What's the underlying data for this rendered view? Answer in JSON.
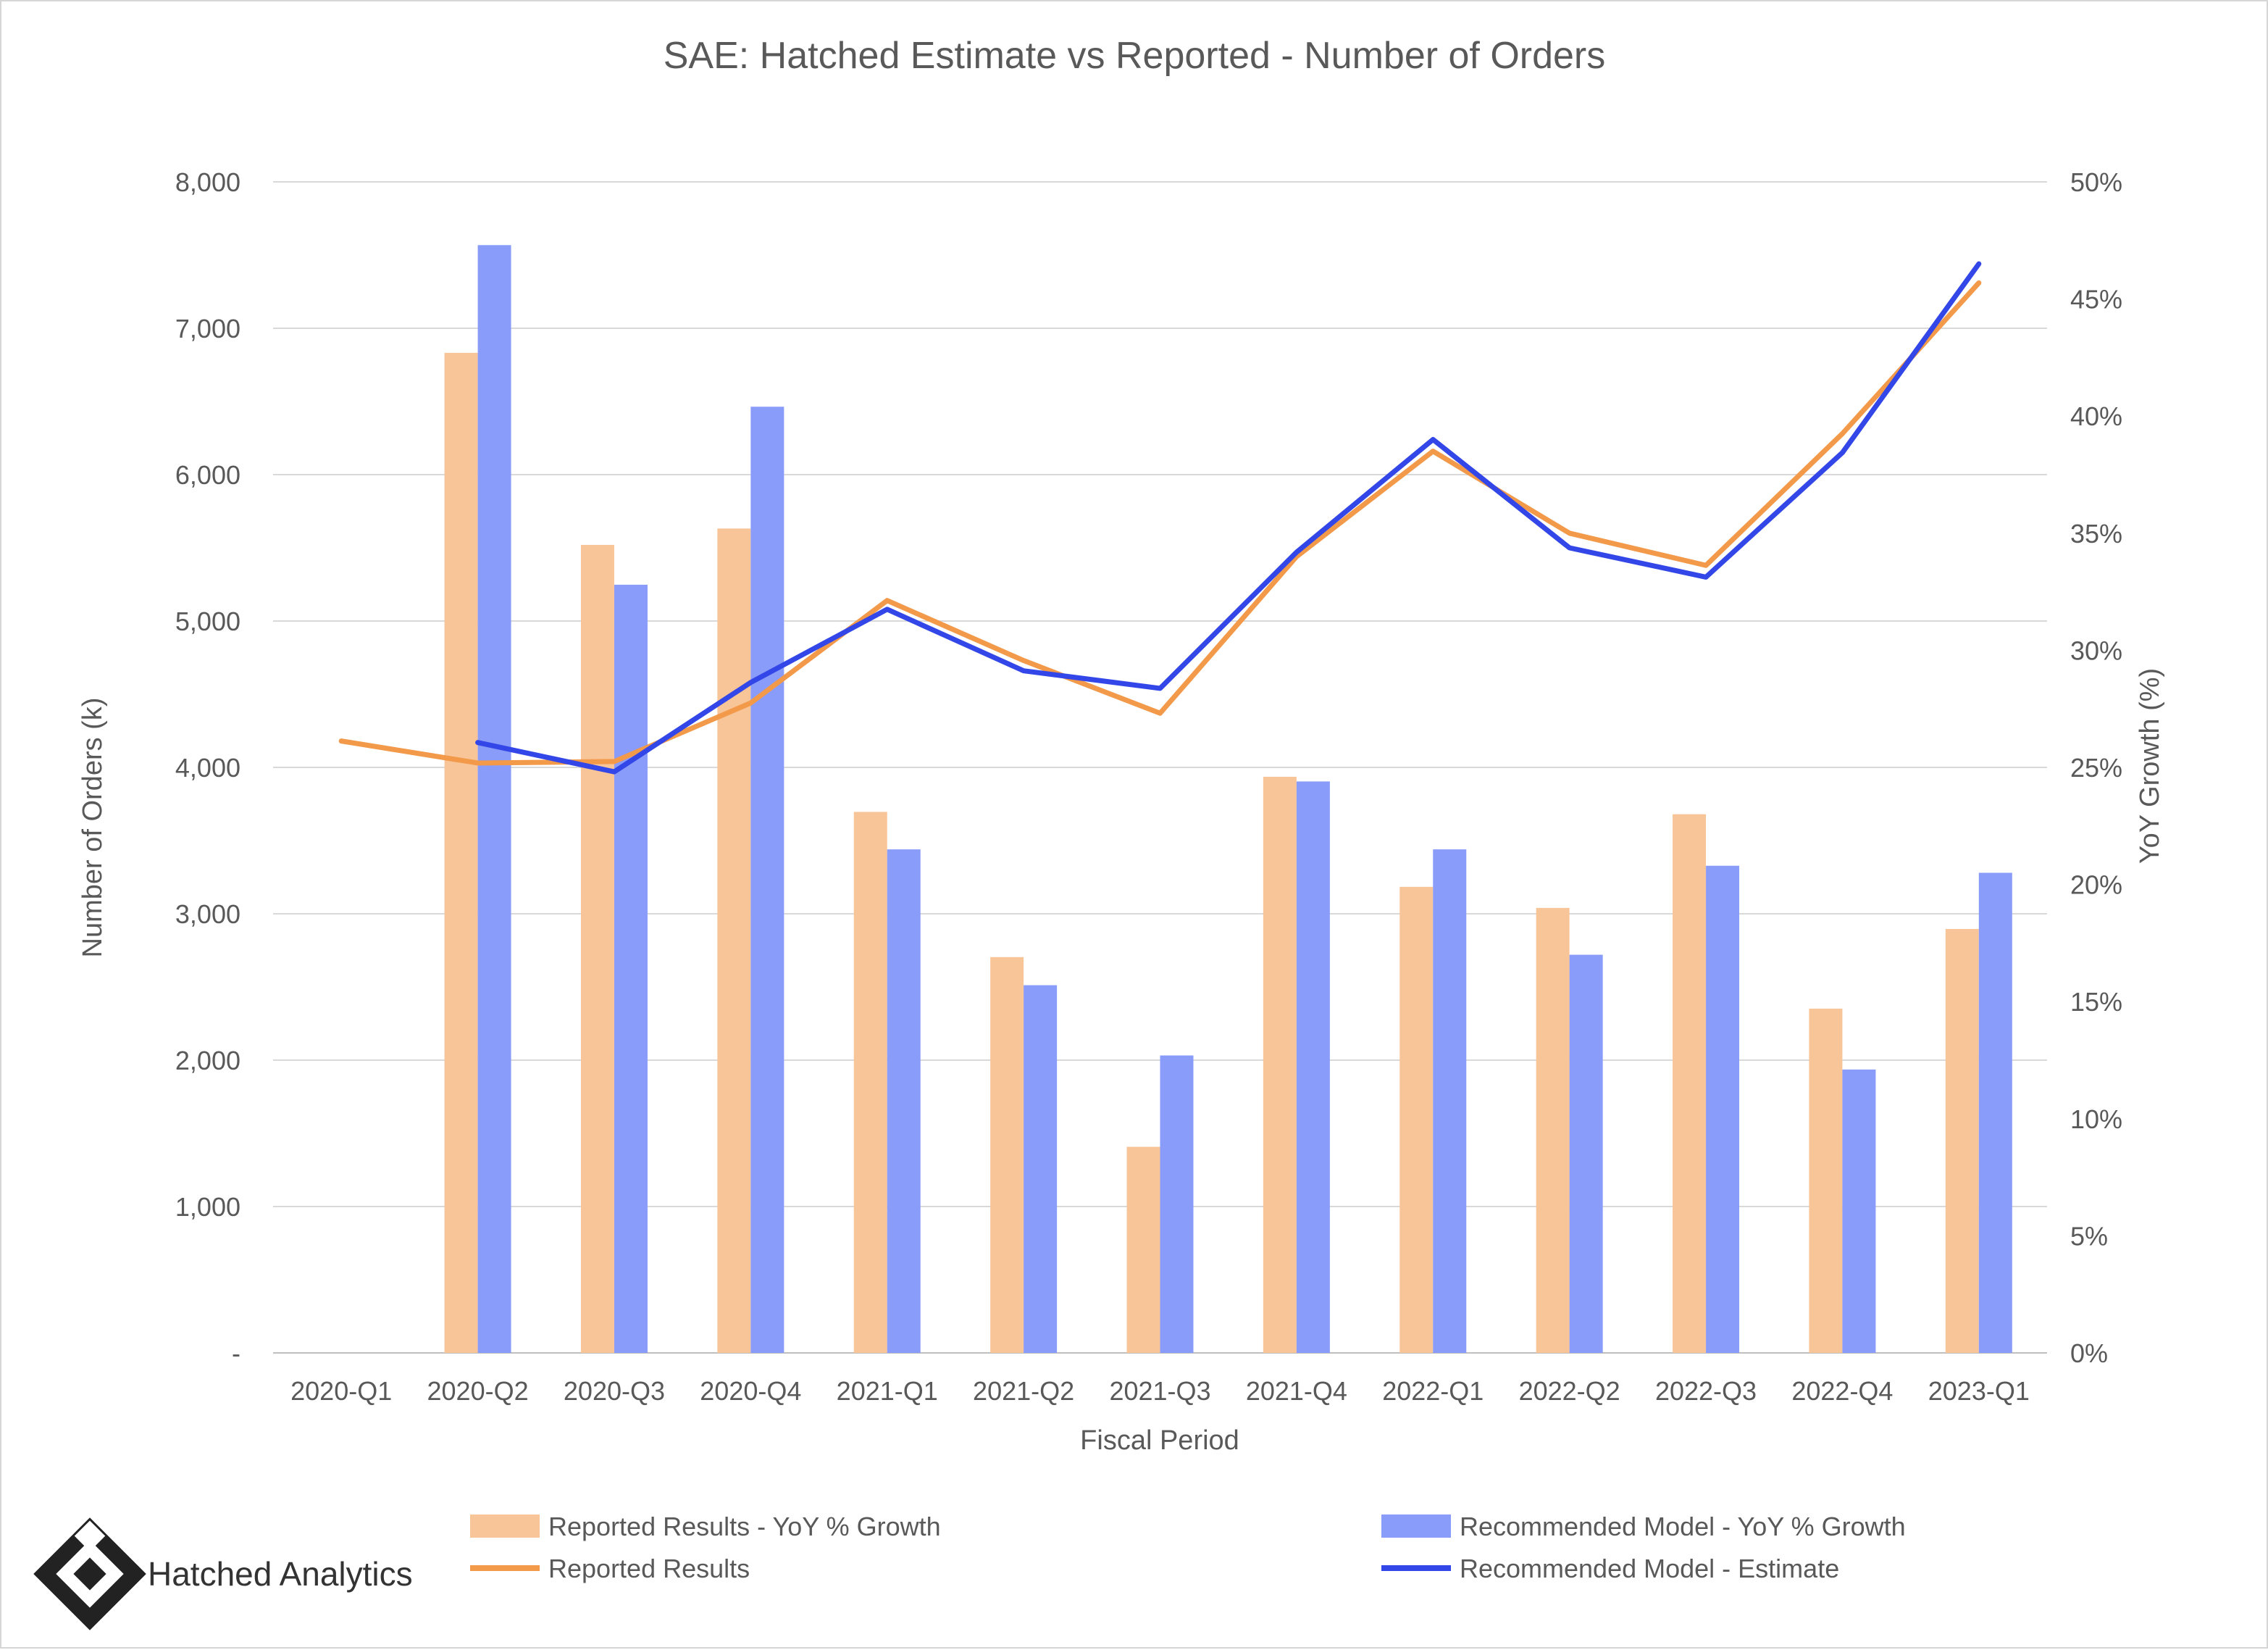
{
  "chart_data": {
    "title": "SAE: Hatched Estimate vs Reported - Number of Orders",
    "xlabel": "Fiscal Period",
    "ylabel_left": "Number of Orders (k)",
    "ylabel_right": "YoY Growth (%)",
    "categories": [
      "2020-Q1",
      "2020-Q2",
      "2020-Q3",
      "2020-Q4",
      "2021-Q1",
      "2021-Q2",
      "2021-Q3",
      "2021-Q4",
      "2022-Q1",
      "2022-Q2",
      "2022-Q3",
      "2022-Q4",
      "2023-Q1"
    ],
    "y_left": {
      "min": 0,
      "max": 8000,
      "ticks": [
        0,
        1000,
        2000,
        3000,
        4000,
        5000,
        6000,
        7000,
        8000
      ],
      "tick_labels": [
        "-",
        "1,000",
        "2,000",
        "3,000",
        "4,000",
        "5,000",
        "6,000",
        "7,000",
        "8,000"
      ]
    },
    "y_right": {
      "min": 0,
      "max": 50,
      "ticks": [
        0,
        5,
        10,
        15,
        20,
        25,
        30,
        35,
        40,
        45,
        50
      ],
      "tick_labels": [
        "0%",
        "5%",
        "10%",
        "15%",
        "20%",
        "25%",
        "30%",
        "35%",
        "40%",
        "45%",
        "50%"
      ]
    },
    "grid": true,
    "legend_position": "bottom",
    "series": [
      {
        "name": "Reported Results - YoY % Growth",
        "type": "bar",
        "axis": "right",
        "color": "#f8c598",
        "values": [
          null,
          42.7,
          34.5,
          35.2,
          23.1,
          16.9,
          8.8,
          24.6,
          19.9,
          19.0,
          23.0,
          14.7,
          18.1
        ]
      },
      {
        "name": "Recommended Model - YoY % Growth",
        "type": "bar",
        "axis": "right",
        "color": "#8a9cfa",
        "values": [
          null,
          47.3,
          32.8,
          40.4,
          21.5,
          15.7,
          12.7,
          24.4,
          21.5,
          17.0,
          20.8,
          12.1,
          20.5
        ]
      },
      {
        "name": "Reported Results",
        "type": "line",
        "axis": "left",
        "color": "#f2994a",
        "values": [
          4180,
          4030,
          4040,
          4440,
          5140,
          4730,
          4370,
          5440,
          6160,
          5600,
          5380,
          6280,
          7310
        ]
      },
      {
        "name": "Recommended Model - Estimate",
        "type": "line",
        "axis": "left",
        "color": "#3347e8",
        "values": [
          null,
          4170,
          3970,
          4580,
          5080,
          4660,
          4540,
          5470,
          6240,
          5500,
          5300,
          6150,
          7440
        ]
      }
    ]
  },
  "brand": {
    "name": "Hatched Analytics"
  }
}
